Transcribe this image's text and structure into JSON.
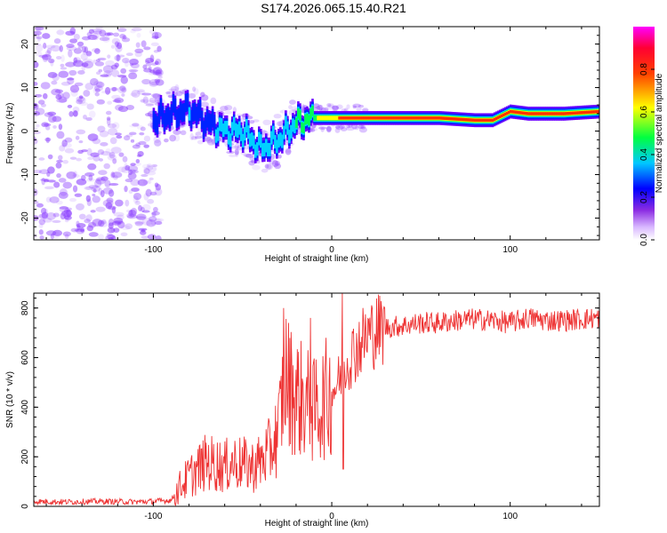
{
  "title": "S174.2026.065.15.40.R21",
  "colors": {
    "snr_line": "#ee3333",
    "scatter_fill": "#8a3cff",
    "axis": "#000000"
  },
  "chart_data": [
    {
      "type": "heatmap",
      "title": "S174.2026.065.15.40.R21",
      "xlabel": "Height of straight line (km)",
      "ylabel": "Frequency (Hz)",
      "xlim": [
        -167,
        150
      ],
      "ylim": [
        -25,
        24
      ],
      "x_ticks": [
        -100,
        0,
        100
      ],
      "y_ticks": [
        -20,
        -10,
        0,
        10,
        20
      ],
      "colorbar": {
        "label": "Normalized spectral amplitude",
        "range": [
          0.0,
          1.0
        ],
        "ticks": [
          0.0,
          0.2,
          0.4,
          0.6,
          0.8
        ],
        "colormap": "rainbow (white-violet-blue-cyan-green-yellow-red-magenta)"
      },
      "ridge": {
        "description": "Bright spectral ridge; noisy scatter below ~-95 km",
        "x": [
          -100,
          -90,
          -80,
          -70,
          -60,
          -50,
          -40,
          -30,
          -20,
          -10,
          0,
          10,
          20,
          40,
          60,
          80,
          90,
          100,
          110,
          130,
          150
        ],
        "frequency": [
          2.5,
          4,
          5,
          2,
          0,
          0,
          -4,
          -2,
          2,
          3,
          3,
          3,
          3,
          3,
          3,
          2.5,
          2.5,
          4.5,
          4,
          4,
          4.5
        ],
        "amplitude": [
          0.25,
          0.3,
          0.35,
          0.3,
          0.4,
          0.4,
          0.35,
          0.45,
          0.5,
          0.6,
          0.7,
          0.85,
          0.9,
          0.9,
          0.95,
          0.85,
          0.75,
          0.85,
          0.95,
          0.95,
          0.95
        ]
      }
    },
    {
      "type": "line",
      "xlabel": "Height of straight line (km)",
      "ylabel": "SNR (10 * v/v)",
      "xlim": [
        -167,
        150
      ],
      "ylim": [
        0,
        860
      ],
      "x_ticks": [
        -100,
        0,
        100
      ],
      "y_ticks": [
        0,
        200,
        400,
        600,
        800
      ],
      "series": [
        {
          "name": "SNR",
          "x": [
            -167,
            -150,
            -130,
            -110,
            -100,
            -90,
            -85,
            -80,
            -75,
            -70,
            -65,
            -60,
            -55,
            -50,
            -45,
            -40,
            -35,
            -30,
            -28,
            -26,
            -25,
            -20,
            -15,
            -10,
            -8,
            -5,
            0,
            5,
            8,
            10,
            15,
            20,
            25,
            30,
            40,
            50,
            60,
            70,
            80,
            90,
            100,
            110,
            120,
            130,
            140,
            150
          ],
          "values": [
            20,
            18,
            20,
            18,
            20,
            25,
            80,
            120,
            150,
            180,
            170,
            160,
            180,
            170,
            160,
            180,
            220,
            300,
            420,
            550,
            500,
            450,
            420,
            380,
            400,
            420,
            460,
            520,
            580,
            600,
            650,
            690,
            710,
            720,
            730,
            740,
            740,
            750,
            755,
            750,
            740,
            760,
            750,
            750,
            755,
            760
          ]
        }
      ],
      "annotations": {
        "spikes": [
          {
            "x": -27,
            "value": 800
          },
          {
            "x": -12,
            "value": 760
          },
          {
            "x": 6,
            "value": 860
          },
          {
            "x": 6.5,
            "value": 150
          }
        ]
      }
    }
  ]
}
